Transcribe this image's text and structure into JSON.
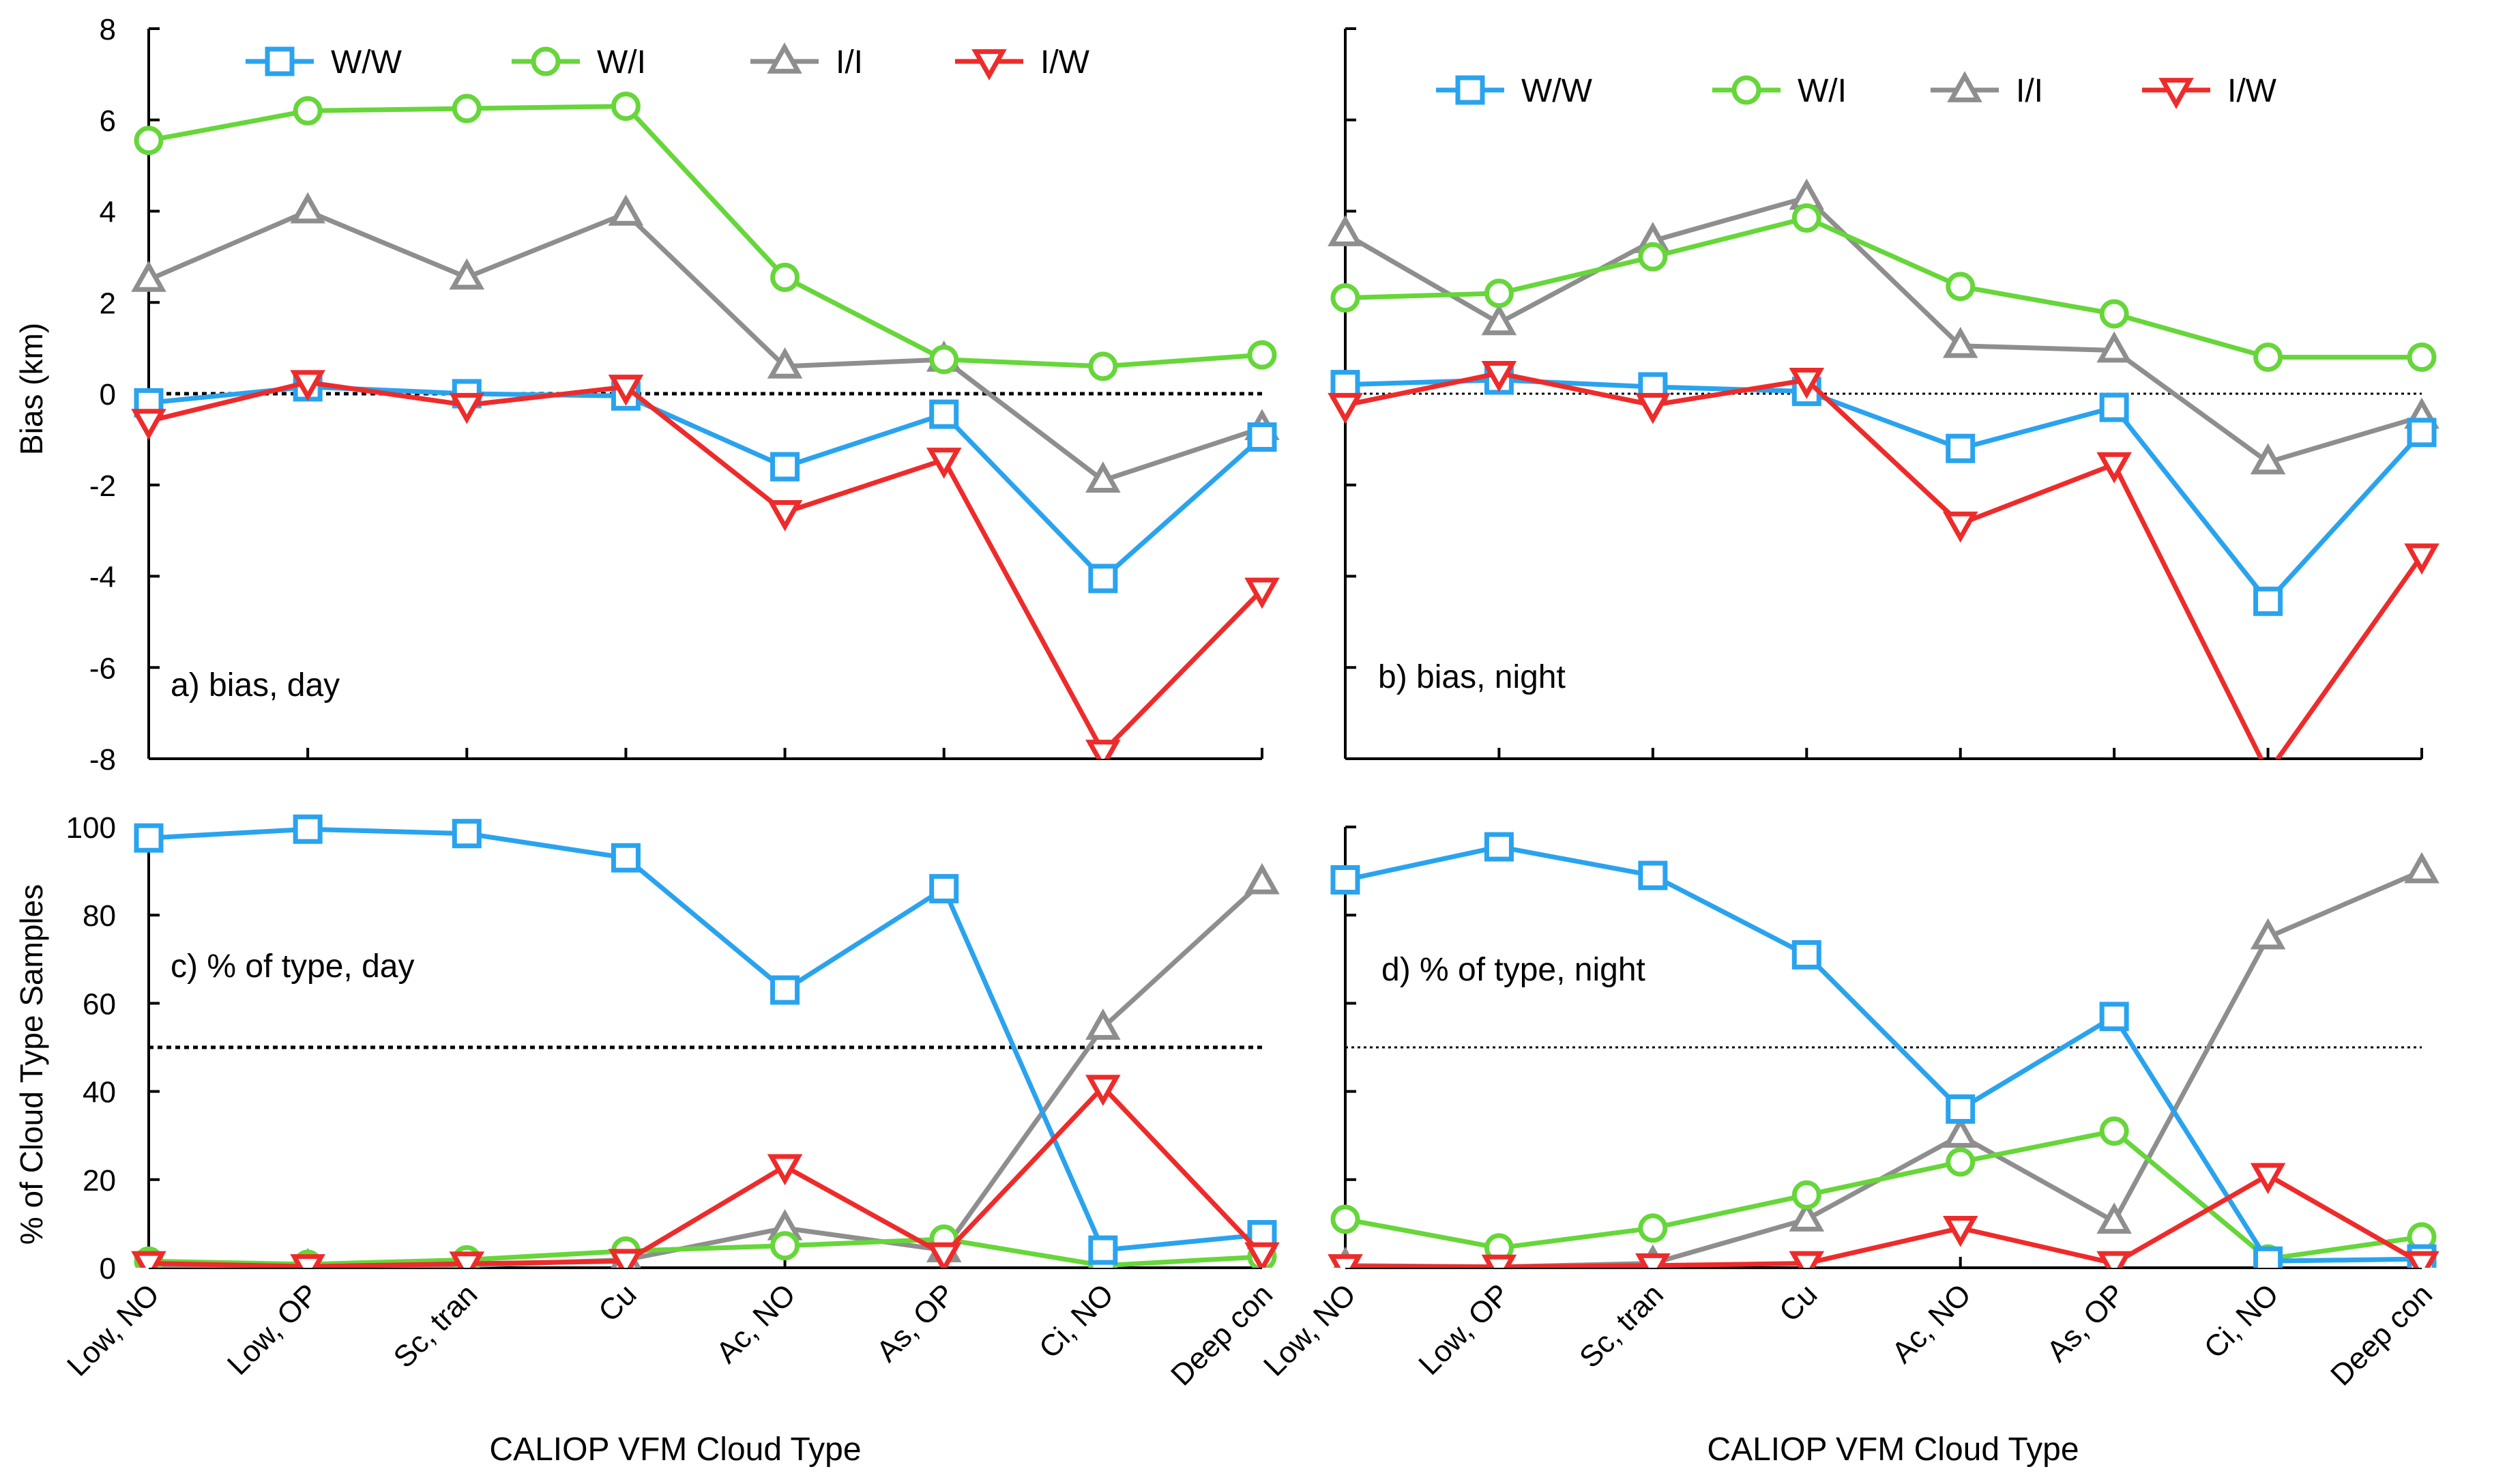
{
  "colors": {
    "W/W": "#2aa3ee",
    "W/I": "#66d63a",
    "I/I": "#8e8e8e",
    "I/W": "#ee2b2b",
    "axis": "#000000"
  },
  "markers": {
    "W/W": "square",
    "W/I": "circle",
    "I/I": "triangle-up",
    "I/W": "triangle-down"
  },
  "shared": {
    "categories": [
      "Low, NO",
      "Low, OP",
      "Sc, tran",
      "Cu",
      "Ac, NO",
      "As, OP",
      "Ci, NO",
      "Deep con"
    ],
    "xlabel": "CALIOP VFM Cloud Type",
    "ylabel_top": "Bias (km)",
    "ylabel_bottom": "% of Cloud Type Samples"
  },
  "chart_data": [
    {
      "type": "line",
      "panel": "a",
      "title": "a) bias, day",
      "categories": [
        "Low, NO",
        "Low, OP",
        "Sc, tran",
        "Cu",
        "Ac, NO",
        "As, OP",
        "Ci, NO",
        "Deep con"
      ],
      "ylim": [
        -8,
        8
      ],
      "yticks": [
        -8,
        -6,
        -4,
        -2,
        0,
        2,
        4,
        6,
        8
      ],
      "reference_line": 0,
      "legend": "top",
      "series": [
        {
          "name": "W/W",
          "values": [
            -0.2,
            0.15,
            0.0,
            -0.05,
            -1.6,
            -0.45,
            -4.05,
            -0.95
          ]
        },
        {
          "name": "W/I",
          "values": [
            5.55,
            6.2,
            6.25,
            6.3,
            2.55,
            0.75,
            0.6,
            0.85
          ]
        },
        {
          "name": "I/I",
          "values": [
            2.5,
            4.0,
            2.55,
            3.95,
            0.6,
            0.75,
            -1.9,
            -0.75
          ]
        },
        {
          "name": "I/W",
          "values": [
            -0.6,
            0.25,
            -0.25,
            0.15,
            -2.6,
            -1.45,
            -7.85,
            -4.3
          ]
        }
      ]
    },
    {
      "type": "line",
      "panel": "b",
      "title": "b) bias, night",
      "categories": [
        "Low, NO",
        "Low, OP",
        "Sc, tran",
        "Cu",
        "Ac, NO",
        "As, OP",
        "Ci, NO",
        "Deep con"
      ],
      "ylim": [
        -8,
        8
      ],
      "yticks": [
        -8,
        -6,
        -4,
        -2,
        0,
        2,
        4,
        6,
        8
      ],
      "reference_line": 0,
      "legend": "top",
      "series": [
        {
          "name": "W/W",
          "values": [
            0.2,
            0.3,
            0.15,
            0.05,
            -1.2,
            -0.3,
            -4.55,
            -0.85
          ]
        },
        {
          "name": "W/I",
          "values": [
            2.1,
            2.2,
            3.0,
            3.85,
            2.35,
            1.75,
            0.8,
            0.8
          ]
        },
        {
          "name": "I/I",
          "values": [
            3.5,
            1.55,
            3.35,
            4.3,
            1.05,
            0.95,
            -1.5,
            -0.5
          ]
        },
        {
          "name": "I/W",
          "values": [
            -0.25,
            0.45,
            -0.25,
            0.3,
            -2.85,
            -1.55,
            -8.3,
            -3.55
          ]
        }
      ]
    },
    {
      "type": "line",
      "panel": "c",
      "title": "c) % of type, day",
      "categories": [
        "Low, NO",
        "Low, OP",
        "Sc, tran",
        "Cu",
        "Ac, NO",
        "As, OP",
        "Ci, NO",
        "Deep con"
      ],
      "ylim": [
        0,
        100
      ],
      "yticks": [
        0,
        20,
        40,
        60,
        80,
        100
      ],
      "reference_line": 50,
      "series": [
        {
          "name": "W/W",
          "values": [
            97.5,
            99.5,
            98.5,
            93,
            63,
            86,
            4,
            7.5
          ]
        },
        {
          "name": "W/I",
          "values": [
            1.5,
            0.8,
            1.8,
            3.8,
            5,
            6.5,
            0.5,
            2.5
          ]
        },
        {
          "name": "I/I",
          "values": [
            0.5,
            0.2,
            0.5,
            1.8,
            9,
            4,
            54.5,
            87.5
          ]
        },
        {
          "name": "I/W",
          "values": [
            1,
            0.3,
            0.9,
            1.5,
            23,
            3,
            41,
            3
          ]
        }
      ]
    },
    {
      "type": "line",
      "panel": "d",
      "title": "d) % of type, night",
      "categories": [
        "Low, NO",
        "Low, OP",
        "Sc, tran",
        "Cu",
        "Ac, NO",
        "As, OP",
        "Ci, NO",
        "Deep con"
      ],
      "ylim": [
        0,
        100
      ],
      "yticks": [
        0,
        20,
        40,
        60,
        80,
        100
      ],
      "reference_line": 50,
      "series": [
        {
          "name": "W/W",
          "values": [
            88,
            95.5,
            89,
            71,
            36,
            57,
            1.5,
            2
          ]
        },
        {
          "name": "W/I",
          "values": [
            11,
            4.5,
            9,
            16.5,
            24,
            31,
            2,
            7
          ]
        },
        {
          "name": "I/I",
          "values": [
            0.5,
            0.2,
            1,
            11,
            30,
            10.5,
            75,
            90
          ]
        },
        {
          "name": "I/W",
          "values": [
            0.3,
            0.2,
            0.5,
            1,
            9,
            1,
            21,
            1
          ]
        }
      ]
    }
  ]
}
